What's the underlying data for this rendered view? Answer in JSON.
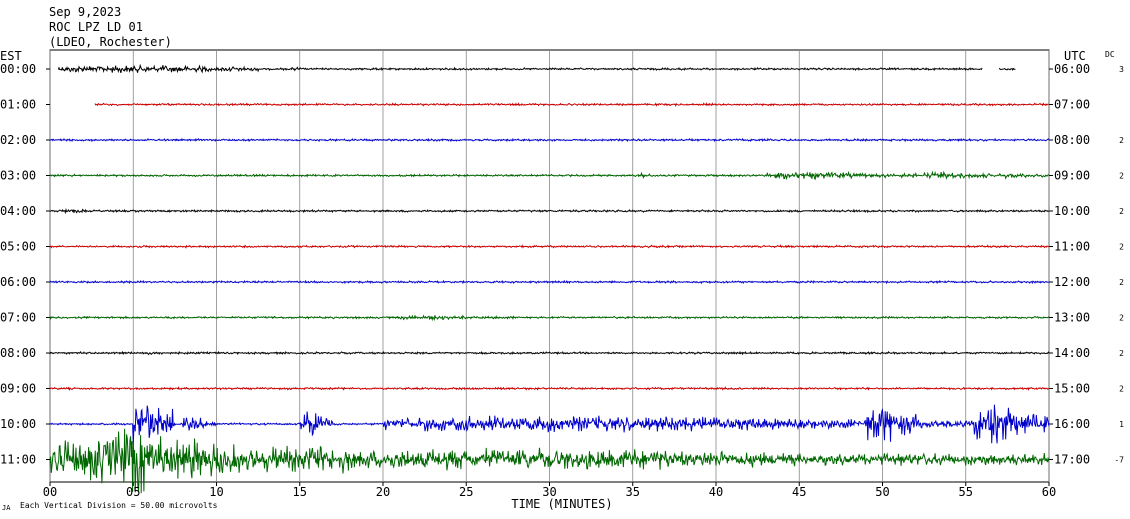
{
  "header": {
    "date": "Sep 9,2023",
    "station": "ROC LPZ LD 01",
    "network": "(LDEO, Rochester)"
  },
  "left_axis_title": "EST",
  "right_axis_title": "UTC",
  "dc_title": "DC",
  "x_axis_title": "TIME (MINUTES)",
  "footnote": "Each Vertical Division = 50.00 microvolts",
  "footnote_mark": "JA",
  "chart_data": {
    "type": "line",
    "x_ticks": [
      "00",
      "05",
      "10",
      "15",
      "20",
      "25",
      "30",
      "35",
      "40",
      "45",
      "50",
      "55",
      "60"
    ],
    "xlim": [
      0,
      60
    ],
    "grid": true,
    "rows": [
      {
        "est": "00:00",
        "utc": "06:00",
        "dc": "3",
        "color": "#000000",
        "start": 0.5,
        "end": 58,
        "gap": [
          56,
          57
        ],
        "bursts": [
          [
            0.5,
            12,
            4.0
          ],
          [
            5.5,
            7,
            4.0
          ],
          [
            10.5,
            1.5,
            3.0
          ],
          [
            14.5,
            1,
            2.0
          ],
          [
            56.5,
            1,
            3.0
          ]
        ]
      },
      {
        "est": "01:00",
        "utc": "07:00",
        "dc": "",
        "color": "#cc0000",
        "start": 2.7,
        "end": 60,
        "bursts": []
      },
      {
        "est": "02:00",
        "utc": "08:00",
        "dc": "2",
        "color": "#0000cc",
        "start": 0,
        "end": 60,
        "bursts": []
      },
      {
        "est": "03:00",
        "utc": "09:00",
        "dc": "2",
        "color": "#006600",
        "start": 0,
        "end": 60,
        "bursts": [
          [
            35.5,
            0.5,
            3.0
          ],
          [
            43,
            9,
            4.0
          ],
          [
            52.5,
            4,
            4.0
          ],
          [
            57,
            3,
            3.0
          ]
        ]
      },
      {
        "est": "04:00",
        "utc": "10:00",
        "dc": "2",
        "color": "#000000",
        "start": 0,
        "end": 60,
        "bursts": [
          [
            0.5,
            3,
            2.0
          ]
        ]
      },
      {
        "est": "05:00",
        "utc": "11:00",
        "dc": "2",
        "color": "#cc0000",
        "start": 0,
        "end": 60,
        "bursts": []
      },
      {
        "est": "06:00",
        "utc": "12:00",
        "dc": "2",
        "color": "#0000cc",
        "start": 0,
        "end": 60,
        "bursts": []
      },
      {
        "est": "07:00",
        "utc": "13:00",
        "dc": "2",
        "color": "#006600",
        "start": 0,
        "end": 60,
        "bursts": [
          [
            21,
            7,
            2.5
          ]
        ]
      },
      {
        "est": "08:00",
        "utc": "14:00",
        "dc": "2",
        "color": "#000000",
        "start": 0,
        "end": 60,
        "bursts": [
          [
            5.5,
            2,
            2.0
          ]
        ]
      },
      {
        "est": "09:00",
        "utc": "15:00",
        "dc": "2",
        "color": "#cc0000",
        "start": 0,
        "end": 60,
        "bursts": []
      },
      {
        "est": "10:00",
        "utc": "16:00",
        "dc": "1",
        "color": "#0000cc",
        "start": 0,
        "end": 60,
        "bursts": [
          [
            5,
            2.5,
            28.0
          ],
          [
            8,
            2,
            8.0
          ],
          [
            15,
            2,
            14.0
          ],
          [
            20,
            40,
            9.0
          ],
          [
            49,
            3,
            22.0
          ],
          [
            55.5,
            4.5,
            22.0
          ]
        ]
      },
      {
        "est": "11:00",
        "utc": "17:00",
        "dc": "-7",
        "color": "#006600",
        "start": 0,
        "end": 60,
        "bursts": [
          [
            0,
            18,
            26.0
          ],
          [
            4,
            4,
            38.0
          ],
          [
            18,
            42,
            12.0
          ]
        ]
      }
    ]
  }
}
